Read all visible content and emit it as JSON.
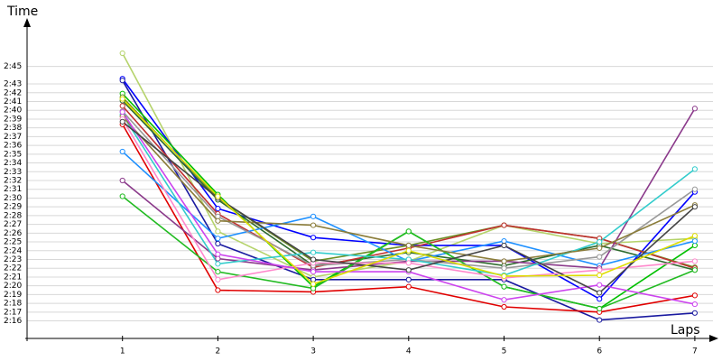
{
  "chart_data": {
    "type": "line",
    "x_label": "Laps",
    "y_label": "Time",
    "x": [
      1,
      2,
      3,
      4,
      5,
      6,
      7
    ],
    "xlim": [
      0,
      7.2
    ],
    "xticks": [
      1,
      2,
      3,
      4,
      5,
      6,
      7
    ],
    "ylim": [
      134,
      170
    ],
    "yticks": [
      {
        "value": 136,
        "label": "2:16"
      },
      {
        "value": 137,
        "label": "2:17"
      },
      {
        "value": 138,
        "label": "2:18"
      },
      {
        "value": 139,
        "label": "2:19"
      },
      {
        "value": 140,
        "label": "2:20"
      },
      {
        "value": 141,
        "label": "2:21"
      },
      {
        "value": 142,
        "label": "2:22"
      },
      {
        "value": 143,
        "label": "2:23"
      },
      {
        "value": 144,
        "label": "2:24"
      },
      {
        "value": 145,
        "label": "2:25"
      },
      {
        "value": 146,
        "label": "2:26"
      },
      {
        "value": 147,
        "label": "2:27"
      },
      {
        "value": 148,
        "label": "2:28"
      },
      {
        "value": 149,
        "label": "2:29"
      },
      {
        "value": 150,
        "label": "2:30"
      },
      {
        "value": 151,
        "label": "2:31"
      },
      {
        "value": 152,
        "label": "2:32"
      },
      {
        "value": 153,
        "label": "2:33"
      },
      {
        "value": 154,
        "label": "2:34"
      },
      {
        "value": 155,
        "label": "2:35"
      },
      {
        "value": 156,
        "label": "2:36"
      },
      {
        "value": 157,
        "label": "2:37"
      },
      {
        "value": 158,
        "label": "2:38"
      },
      {
        "value": 159,
        "label": "2:39"
      },
      {
        "value": 160,
        "label": "2:40"
      },
      {
        "value": 161,
        "label": "2:41"
      },
      {
        "value": 162,
        "label": "2:42"
      },
      {
        "value": 163,
        "label": "2:43"
      },
      {
        "value": 165,
        "label": "2:45"
      }
    ],
    "grid": true,
    "series": [
      {
        "color": "#b5d36b",
        "values": [
          166.5,
          146.2,
          141,
          142.8,
          146.9,
          144.8,
          145.4
        ]
      },
      {
        "color": "#0000ff",
        "values": [
          163.6,
          148.8,
          145.5,
          144.6,
          144.6,
          138.5,
          150.7
        ]
      },
      {
        "color": "#1a1aa0",
        "values": [
          163.4,
          144.8,
          140.7,
          140.7,
          140.7,
          136.1,
          136.9
        ]
      },
      {
        "color": "#00c000",
        "values": [
          161.9,
          150.4,
          139.9,
          146.2,
          139.9,
          137.4,
          144.6
        ]
      },
      {
        "color": "#6b8e23",
        "values": [
          161.5,
          150,
          142.8,
          144.6,
          146.9,
          145.4,
          142.1
        ]
      },
      {
        "color": "#2e6b2e",
        "values": [
          161.1,
          149.8,
          142.3,
          143.8,
          142.3,
          144.6,
          141.8
        ]
      },
      {
        "color": "#e00000",
        "values": [
          158.4,
          139.5,
          139.3,
          139.9,
          137.6,
          137,
          138.9
        ]
      },
      {
        "color": "#c03030",
        "values": [
          160.5,
          148.2,
          142.1,
          144.3,
          146.9,
          145.4,
          142
        ]
      },
      {
        "color": "#1e90ff",
        "values": [
          155.3,
          145.4,
          147.9,
          142.8,
          145.1,
          142.3,
          145.1
        ]
      },
      {
        "color": "#8b3a8b",
        "values": [
          152,
          143.1,
          141.8,
          142.8,
          142.8,
          142,
          160.2
        ]
      },
      {
        "color": "#22bb22",
        "values": [
          150.2,
          141.6,
          139.7,
          146.2,
          139.9,
          137.4,
          141.8
        ]
      },
      {
        "color": "#999999",
        "values": [
          159.9,
          147.9,
          142.3,
          143,
          142,
          143.3,
          151
        ]
      },
      {
        "color": "#33cccc",
        "values": [
          159.5,
          142.5,
          143.8,
          143,
          141.2,
          145,
          153.3
        ]
      },
      {
        "color": "#8b7d3a",
        "values": [
          159.3,
          147.4,
          146.9,
          144.6,
          142.8,
          144.3,
          149.2
        ]
      },
      {
        "color": "#ff88cc",
        "values": [
          159,
          140.7,
          142.6,
          142.6,
          140.9,
          141.8,
          142.8
        ]
      },
      {
        "color": "#cc44ee",
        "values": [
          159.8,
          143.6,
          141.6,
          141.6,
          138.4,
          140.1,
          137.9
        ]
      },
      {
        "color": "#444444",
        "values": [
          158.7,
          150,
          143,
          141.8,
          144.6,
          139.2,
          149
        ]
      },
      {
        "color": "#dddd00",
        "values": [
          161.3,
          150.2,
          140.2,
          144,
          141.1,
          141.2,
          145.7
        ]
      }
    ]
  }
}
